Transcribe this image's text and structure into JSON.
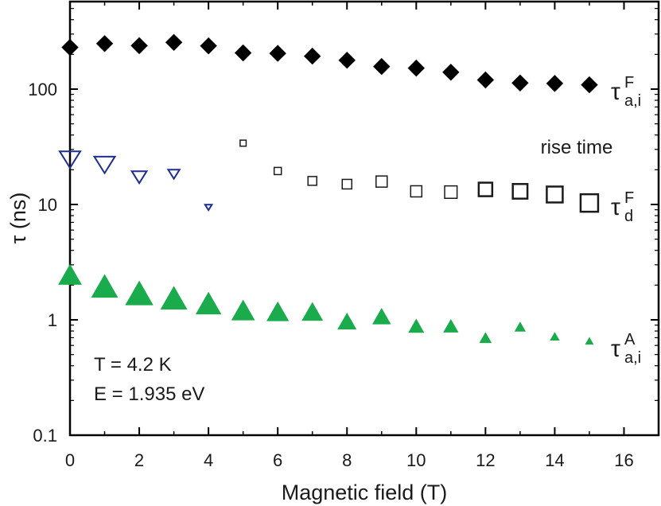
{
  "chart_data": {
    "type": "scatter",
    "xlabel": "Magnetic field (T)",
    "ylabel": "τ (ns)",
    "xlim": [
      0,
      17
    ],
    "ylim": [
      0.1,
      500
    ],
    "yscale": "log",
    "x_ticks": [
      0,
      2,
      4,
      6,
      8,
      10,
      12,
      14,
      16
    ],
    "y_ticks": [
      0.1,
      1,
      10,
      100
    ],
    "y_tick_labels": [
      "0.1",
      "1",
      "10",
      "100"
    ],
    "grid": false,
    "series": [
      {
        "label_main": "τ",
        "label_sup": "F",
        "label_sub": "a,i",
        "marker": "diamond",
        "color": "#000000",
        "filled": true,
        "points": [
          {
            "x": 0,
            "y": 230,
            "size": 1.0
          },
          {
            "x": 1,
            "y": 248,
            "size": 1.0
          },
          {
            "x": 2,
            "y": 238,
            "size": 1.0
          },
          {
            "x": 3,
            "y": 254,
            "size": 1.0
          },
          {
            "x": 4,
            "y": 237,
            "size": 1.0
          },
          {
            "x": 5,
            "y": 206,
            "size": 1.0
          },
          {
            "x": 6,
            "y": 204,
            "size": 1.0
          },
          {
            "x": 7,
            "y": 193,
            "size": 1.0
          },
          {
            "x": 8,
            "y": 178,
            "size": 1.0
          },
          {
            "x": 9,
            "y": 157,
            "size": 1.0
          },
          {
            "x": 10,
            "y": 152,
            "size": 1.0
          },
          {
            "x": 11,
            "y": 140,
            "size": 1.0
          },
          {
            "x": 12,
            "y": 120,
            "size": 1.0
          },
          {
            "x": 13,
            "y": 113,
            "size": 1.0
          },
          {
            "x": 14,
            "y": 112,
            "size": 1.0
          },
          {
            "x": 15,
            "y": 109,
            "size": 1.0
          }
        ]
      },
      {
        "label_main": "",
        "label_sup": "",
        "label_sub": "",
        "marker": "triangle-down",
        "color": "#1f2f8f",
        "filled": false,
        "points": [
          {
            "x": 0,
            "y": 25,
            "size": 1.0
          },
          {
            "x": 1,
            "y": 22.5,
            "size": 1.0
          },
          {
            "x": 2,
            "y": 17.5,
            "size": 0.72
          },
          {
            "x": 3,
            "y": 18.5,
            "size": 0.55
          },
          {
            "x": 4,
            "y": 9.5,
            "size": 0.33
          }
        ]
      },
      {
        "label_main": "τ",
        "label_sup": "F",
        "label_sub": "d",
        "marker": "square",
        "color": "#1a1a1a",
        "filled": false,
        "points": [
          {
            "x": 5,
            "y": 34,
            "size": 0.38
          },
          {
            "x": 6,
            "y": 19.5,
            "size": 0.45
          },
          {
            "x": 7,
            "y": 16,
            "size": 0.55
          },
          {
            "x": 8,
            "y": 15,
            "size": 0.6
          },
          {
            "x": 9,
            "y": 15.8,
            "size": 0.7
          },
          {
            "x": 10,
            "y": 13,
            "size": 0.7
          },
          {
            "x": 11,
            "y": 12.8,
            "size": 0.78
          },
          {
            "x": 12,
            "y": 13.5,
            "size": 0.85
          },
          {
            "x": 13,
            "y": 13,
            "size": 0.92
          },
          {
            "x": 14,
            "y": 12.2,
            "size": 1.0
          },
          {
            "x": 15,
            "y": 10.3,
            "size": 1.1
          }
        ]
      },
      {
        "label_main": "τ",
        "label_sup": "A",
        "label_sub": "a,i",
        "marker": "triangle-up",
        "color": "#1aab4c",
        "filled": true,
        "points": [
          {
            "x": 0,
            "y": 2.4,
            "size": 1.0
          },
          {
            "x": 1,
            "y": 1.9,
            "size": 1.15
          },
          {
            "x": 2,
            "y": 1.65,
            "size": 1.2
          },
          {
            "x": 3,
            "y": 1.5,
            "size": 1.15
          },
          {
            "x": 4,
            "y": 1.35,
            "size": 1.1
          },
          {
            "x": 5,
            "y": 1.18,
            "size": 1.0
          },
          {
            "x": 6,
            "y": 1.15,
            "size": 0.95
          },
          {
            "x": 7,
            "y": 1.15,
            "size": 0.9
          },
          {
            "x": 8,
            "y": 0.95,
            "size": 0.8
          },
          {
            "x": 9,
            "y": 1.05,
            "size": 0.78
          },
          {
            "x": 10,
            "y": 0.87,
            "size": 0.66
          },
          {
            "x": 11,
            "y": 0.87,
            "size": 0.63
          },
          {
            "x": 12,
            "y": 0.69,
            "size": 0.5
          },
          {
            "x": 13,
            "y": 0.86,
            "size": 0.45
          },
          {
            "x": 14,
            "y": 0.71,
            "size": 0.38
          },
          {
            "x": 15,
            "y": 0.65,
            "size": 0.33
          }
        ]
      }
    ],
    "annotations": {
      "rise_time": "rise time",
      "temperature": "T = 4.2 K",
      "energy": "E = 1.935 eV"
    }
  }
}
